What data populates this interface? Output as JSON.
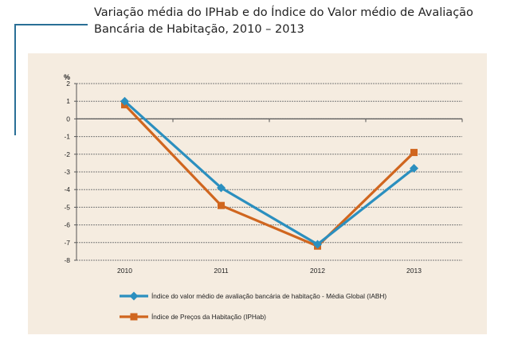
{
  "page_title": {
    "line1": "Variação média do IPHab e do Índice do Valor médio de Avaliação",
    "line2": "Bancária de Habitação, 2010 – 2013"
  },
  "colors": {
    "iabh": "#2b8fbf",
    "iphab": "#d0661f",
    "panel_background": "#f5ece0",
    "title_rule": "#2a6f96"
  },
  "chart_data": {
    "type": "line",
    "title": "",
    "xlabel": "",
    "ylabel": "%",
    "categories": [
      "2010",
      "2011",
      "2012",
      "2013"
    ],
    "ylim": [
      -8,
      2
    ],
    "yticks": [
      "2",
      "1",
      "0",
      "-1",
      "-2",
      "-3",
      "-4",
      "-5",
      "-6",
      "-7",
      "-8"
    ],
    "grid": true,
    "legend_position": "bottom",
    "series": [
      {
        "name": "Índice do valor médio de avaliação bancária de habitação - Média Global (IABH)",
        "values": [
          1.0,
          -3.9,
          -7.1,
          -2.8
        ],
        "marker": "diamond",
        "color": "#2b8fbf"
      },
      {
        "name": "Índice de Preços da Habitação (IPHab)",
        "values": [
          0.8,
          -4.9,
          -7.2,
          -1.9
        ],
        "marker": "square",
        "color": "#d0661f"
      }
    ]
  }
}
